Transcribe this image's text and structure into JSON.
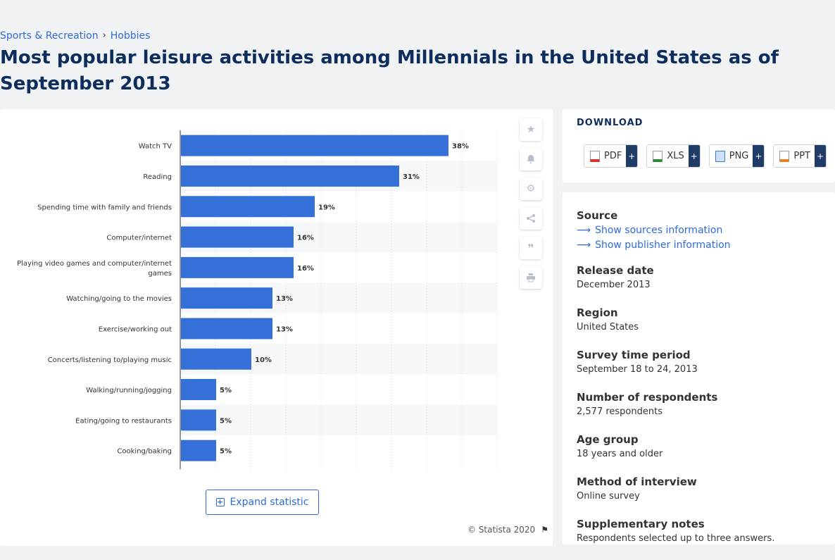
{
  "breadcrumb": {
    "item1": "Sports & Recreation",
    "separator": "›",
    "item2": "Hobbies"
  },
  "title": "Most popular leisure activities among Millennials in the United States as of September 2013",
  "chart_data": {
    "type": "bar",
    "orientation": "horizontal",
    "categories": [
      "Watch TV",
      "Reading",
      "Spending time with family and friends",
      "Computer/internet",
      "Playing video games and computer/internet games",
      "Watching/going to the movies",
      "Exercise/working out",
      "Concerts/listening to/playing music",
      "Walking/running/jogging",
      "Eating/going to restaurants",
      "Cooking/baking"
    ],
    "category_lines": [
      [
        "Watch TV"
      ],
      [
        "Reading"
      ],
      [
        "Spending time with family and friends"
      ],
      [
        "Computer/internet"
      ],
      [
        "Playing video games and computer/internet",
        "games"
      ],
      [
        "Watching/going to the movies"
      ],
      [
        "Exercise/working out"
      ],
      [
        "Concerts/listening to/playing music"
      ],
      [
        "Walking/running/jogging"
      ],
      [
        "Eating/going to restaurants"
      ],
      [
        "Cooking/baking"
      ]
    ],
    "values": [
      38,
      31,
      19,
      16,
      16,
      13,
      13,
      10,
      5,
      5,
      5
    ],
    "value_suffix": "%",
    "xlim": [
      0,
      45
    ],
    "grid": true,
    "bar_color": "#3470d8"
  },
  "expand": {
    "label": "Expand statistic"
  },
  "copyright": "© Statista 2020",
  "side_icons": [
    "star-icon",
    "bell-icon",
    "gear-icon",
    "share-icon",
    "quote-icon",
    "print-icon"
  ],
  "download": {
    "title": "DOWNLOAD",
    "buttons": [
      {
        "label": "PDF",
        "plus": "+",
        "color": "#d9342b"
      },
      {
        "label": "XLS",
        "plus": "+",
        "color": "#2e8b3a"
      },
      {
        "label": "PNG",
        "plus": "+",
        "color": "#3a78c9"
      },
      {
        "label": "PPT",
        "plus": "+",
        "color": "#e3822b"
      }
    ]
  },
  "info": {
    "source_heading": "Source",
    "show_sources": "Show sources information",
    "show_publisher": "Show publisher information",
    "release_date_heading": "Release date",
    "release_date": "December 2013",
    "region_heading": "Region",
    "region": "United States",
    "survey_period_heading": "Survey time period",
    "survey_period": "September 18 to 24, 2013",
    "respondents_heading": "Number of respondents",
    "respondents": "2,577 respondents",
    "age_heading": "Age group",
    "age": "18 years and older",
    "method_heading": "Method of interview",
    "method": "Online survey",
    "notes_heading": "Supplementary notes",
    "notes": "Respondents selected up to three answers."
  }
}
